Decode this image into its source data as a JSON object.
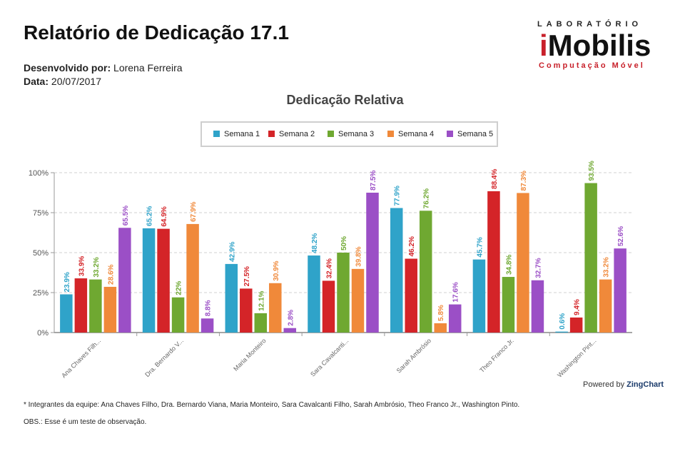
{
  "report": {
    "title": "Relatório de Dedicação 17.1",
    "developer_label": "Desenvolvido por:",
    "developer": "Lorena Ferreira",
    "date_label": "Data:",
    "date": "20/07/2017"
  },
  "logo": {
    "top": "LABORATÓRIO",
    "main_i": "i",
    "main_rest": "Mobilis",
    "sub": "Computação Móvel"
  },
  "chart_data": {
    "type": "bar",
    "title": "Dedicação Relativa",
    "categories": [
      "Ana Chaves Filh...",
      "Dra. Bernardo V...",
      "Maria Monteiro",
      "Sara Cavalcanti...",
      "Sarah Ambrósio",
      "Theo Franco Jr.",
      "Washington Pint..."
    ],
    "y_ticks": [
      "0%",
      "25%",
      "50%",
      "75%",
      "100%"
    ],
    "ylim": [
      0,
      100
    ],
    "grid": true,
    "legend_position": "top-center",
    "series": [
      {
        "name": "Semana 1",
        "color": "#2fa3c9",
        "values": [
          23.9,
          65.2,
          42.9,
          48.2,
          77.9,
          45.7,
          0.6
        ],
        "labels": [
          "23.9%",
          "65.2%",
          "42.9%",
          "48.2%",
          "77.9%",
          "45.7%",
          "0.6%"
        ]
      },
      {
        "name": "Semana 2",
        "color": "#d42428",
        "values": [
          33.9,
          64.9,
          27.5,
          32.4,
          46.2,
          88.4,
          9.4
        ],
        "labels": [
          "33.9%",
          "64.9%",
          "27.5%",
          "32.4%",
          "46.2%",
          "88.4%",
          "9.4%"
        ]
      },
      {
        "name": "Semana 3",
        "color": "#6fa831",
        "values": [
          33.2,
          22,
          12.1,
          50,
          76.2,
          34.8,
          93.5
        ],
        "labels": [
          "33.2%",
          "22%",
          "12.1%",
          "50%",
          "76.2%",
          "34.8%",
          "93.5%"
        ]
      },
      {
        "name": "Semana 4",
        "color": "#f0893a",
        "values": [
          28.6,
          67.9,
          30.9,
          39.8,
          5.8,
          87.3,
          33.2
        ],
        "labels": [
          "28.6%",
          "67.9%",
          "30.9%",
          "39.8%",
          "5.8%",
          "87.3%",
          "33.2%"
        ]
      },
      {
        "name": "Semana 5",
        "color": "#9b4fc6",
        "values": [
          65.5,
          8.8,
          2.8,
          87.5,
          17.6,
          32.7,
          52.6
        ],
        "labels": [
          "65.5%",
          "8.8%",
          "2.8%",
          "87.5%",
          "17.6%",
          "32.7%",
          "52.6%"
        ]
      }
    ]
  },
  "powered": {
    "prefix": "Powered by ",
    "brand": "ZingChart"
  },
  "notes": {
    "team": "* Integrantes da equipe: Ana Chaves Filho, Dra. Bernardo Viana, Maria Monteiro, Sara Cavalcanti Filho, Sarah Ambrósio, Theo Franco Jr., Washington Pinto.",
    "obs": "OBS.: Esse é um teste de observação."
  }
}
